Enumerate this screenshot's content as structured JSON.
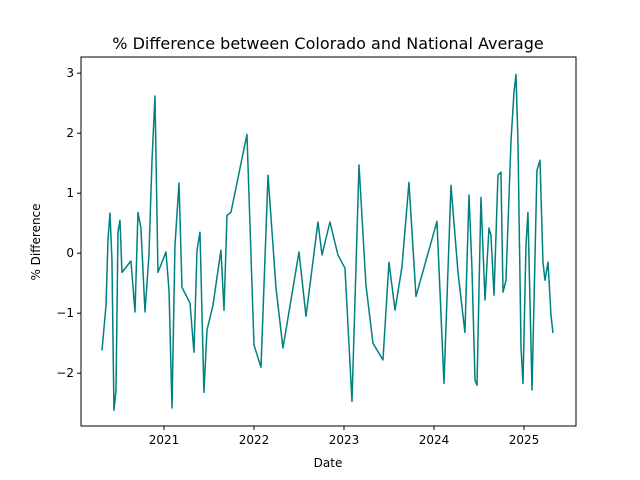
{
  "chart_data": {
    "type": "line",
    "title": "% Difference between Colorado and National Average",
    "x_label": "Date",
    "y_label": "% Difference",
    "x": [
      2020.311,
      2020.356,
      2020.378,
      2020.4,
      2020.422,
      2020.444,
      2020.467,
      2020.489,
      2020.511,
      2020.533,
      2020.633,
      2020.678,
      2020.711,
      2020.744,
      2020.789,
      2020.833,
      2020.867,
      2020.9,
      2020.933,
      2021.022,
      2021.056,
      2021.089,
      2021.122,
      2021.167,
      2021.2,
      2021.289,
      2021.333,
      2021.367,
      2021.4,
      2021.444,
      2021.478,
      2021.544,
      2021.633,
      2021.667,
      2021.7,
      2021.744,
      2021.922,
      2022.0,
      2022.078,
      2022.156,
      2022.244,
      2022.322,
      2022.5,
      2022.578,
      2022.711,
      2022.756,
      2022.844,
      2022.933,
      2023.011,
      2023.089,
      2023.167,
      2023.244,
      2023.322,
      2023.433,
      2023.5,
      2023.567,
      2023.644,
      2023.722,
      2023.8,
      2024.033,
      2024.111,
      2024.189,
      2024.267,
      2024.344,
      2024.389,
      2024.422,
      2024.456,
      2024.478,
      2024.522,
      2024.567,
      2024.611,
      2024.633,
      2024.667,
      2024.711,
      2024.744,
      2024.767,
      2024.8,
      2024.856,
      2024.889,
      2024.911,
      2024.933,
      2024.967,
      2024.989,
      2025.022,
      2025.044,
      2025.089,
      2025.144,
      2025.178,
      2025.211,
      2025.233,
      2025.267,
      2025.3,
      2025.322
    ],
    "series": [
      {
        "name": "% Difference",
        "color": "#008080",
        "values": [
          -1.62,
          -0.87,
          0.22,
          0.67,
          -0.12,
          -2.62,
          -2.28,
          0.35,
          0.55,
          -0.32,
          -0.13,
          -0.98,
          0.68,
          0.42,
          -0.98,
          -0.03,
          1.55,
          2.62,
          -0.32,
          0.02,
          -0.62,
          -2.58,
          0.13,
          1.17,
          -0.57,
          -0.83,
          -1.65,
          0.05,
          0.35,
          -2.32,
          -1.28,
          -0.87,
          0.05,
          -0.95,
          0.63,
          0.68,
          1.98,
          -1.53,
          -1.9,
          1.3,
          -0.57,
          -1.58,
          0.02,
          -1.05,
          0.52,
          -0.03,
          0.52,
          -0.03,
          -0.25,
          -2.47,
          1.47,
          -0.53,
          -1.5,
          -1.78,
          -0.15,
          -0.95,
          -0.23,
          1.18,
          -0.72,
          0.53,
          -2.17,
          1.13,
          -0.32,
          -1.32,
          0.97,
          -0.25,
          -2.12,
          -2.2,
          0.93,
          -0.78,
          0.42,
          0.3,
          -0.7,
          1.3,
          1.35,
          -0.65,
          -0.45,
          1.88,
          2.68,
          2.98,
          1.88,
          -1.57,
          -2.17,
          0.13,
          0.68,
          -2.28,
          1.38,
          1.55,
          -0.15,
          -0.45,
          -0.15,
          -1.03,
          -1.33
        ]
      }
    ],
    "xlim": [
      2020.078,
      2025.578
    ],
    "xticks": [
      2021,
      2022,
      2023,
      2024,
      2025
    ],
    "ylim": [
      -2.88,
      3.27
    ],
    "yticks": [
      {
        "value": -2,
        "label": "−2"
      },
      {
        "value": -1,
        "label": "−1"
      },
      0,
      1,
      2,
      3
    ],
    "grid": false
  }
}
